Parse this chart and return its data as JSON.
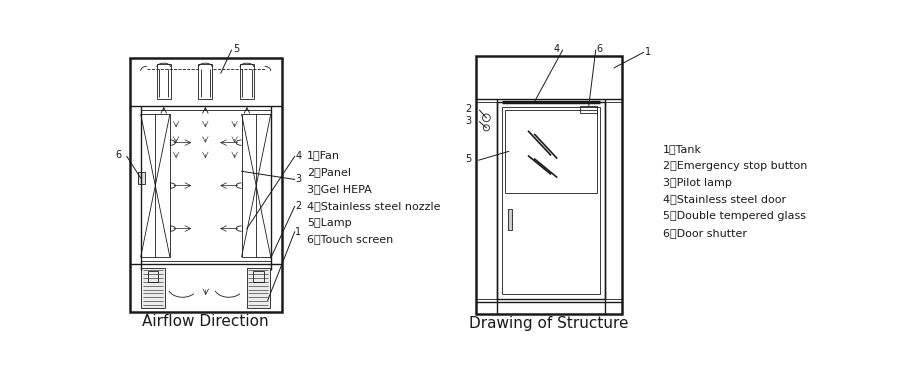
{
  "title_left": "Airflow Direction",
  "title_right": "Drawing of Structure",
  "left_legend": [
    "1、Fan",
    "2、Panel",
    "3、Gel HEPA",
    "4、Stainless steel nozzle",
    "5、Lamp",
    "6、Touch screen"
  ],
  "right_legend": [
    "1、Tank",
    "2、Emergency stop button",
    "3、Pilot lamp",
    "4、Stainless steel door",
    "5、Double tempered glass",
    "6、Door shutter"
  ],
  "lc": "#1a1a1a",
  "bg": "#ffffff"
}
